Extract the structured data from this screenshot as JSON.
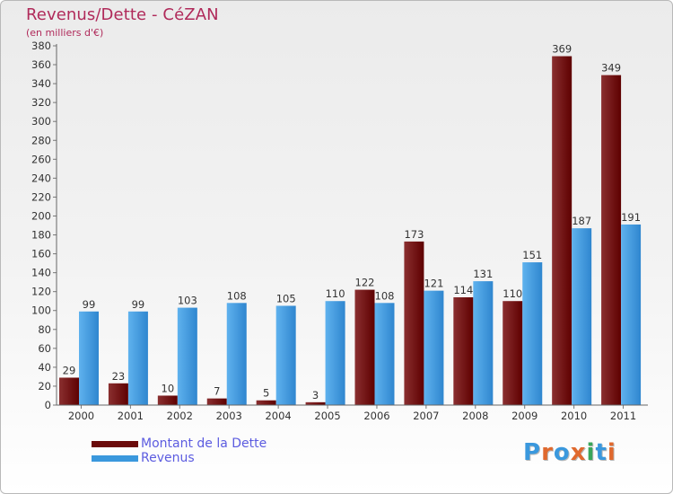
{
  "colors": {
    "dette": "#6b0a0a",
    "revenus": "#3a98dd"
  },
  "header": {
    "title": "Revenus/Dette - CéZAN",
    "subtitle": "(en milliers d'€)"
  },
  "legend": {
    "items": [
      {
        "label": "Montant de la Dette",
        "color": "#6b0a0a"
      },
      {
        "label": "Revenus",
        "color": "#3a98dd"
      }
    ]
  },
  "logo": {
    "text": "Proxiti",
    "letter_colors": [
      "#3a98dd",
      "#e0692e",
      "#3a98dd",
      "#e0692e",
      "#3aa65a",
      "#3a98dd",
      "#e0692e"
    ]
  },
  "chart_data": {
    "type": "bar",
    "title": "Revenus/Dette - CéZAN",
    "subtitle": "(en milliers d'€)",
    "categories": [
      "2000",
      "2001",
      "2002",
      "2003",
      "2004",
      "2005",
      "2006",
      "2007",
      "2008",
      "2009",
      "2010",
      "2011"
    ],
    "series": [
      {
        "name": "Montant de la Dette",
        "values": [
          29,
          23,
          10,
          7,
          5,
          3,
          122,
          173,
          114,
          110,
          369,
          349
        ]
      },
      {
        "name": "Revenus",
        "values": [
          99,
          99,
          103,
          108,
          105,
          110,
          108,
          121,
          131,
          151,
          187,
          191
        ]
      }
    ],
    "ylim": [
      0,
      380
    ],
    "ystep": 20,
    "data_labels": true,
    "grid": false,
    "legend_position": "bottom-left"
  }
}
